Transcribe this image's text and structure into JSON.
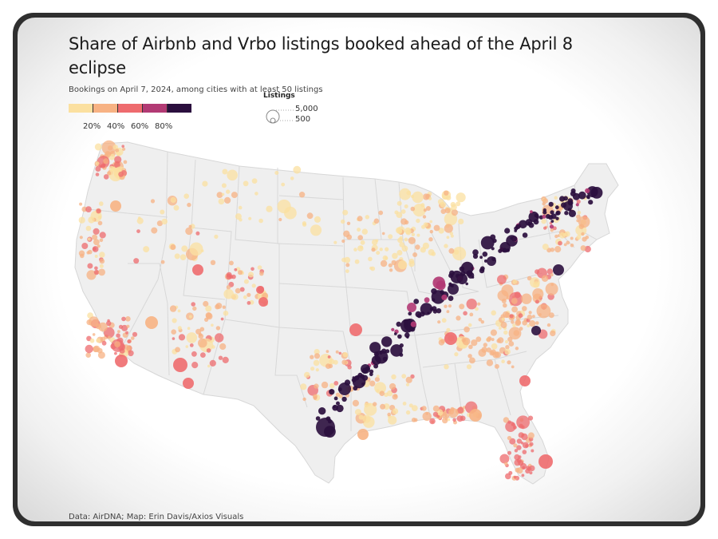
{
  "title": "Share of Airbnb and Vrbo listings booked ahead of the April 8 eclipse",
  "subtitle": "Bookings on April 7, 2024, among cities with at least 50 listings",
  "legend": {
    "colors": [
      "#fbe0a0",
      "#f7b283",
      "#ee6b6e",
      "#b23a74",
      "#2b0f3e"
    ],
    "ticks": [
      "20%",
      "40%",
      "60%",
      "80%"
    ]
  },
  "size_legend": {
    "title": "Listings",
    "large": "5,000",
    "small": "500"
  },
  "source": "Data: AirDNA; Map: Erin Davis/Axios Visuals"
}
